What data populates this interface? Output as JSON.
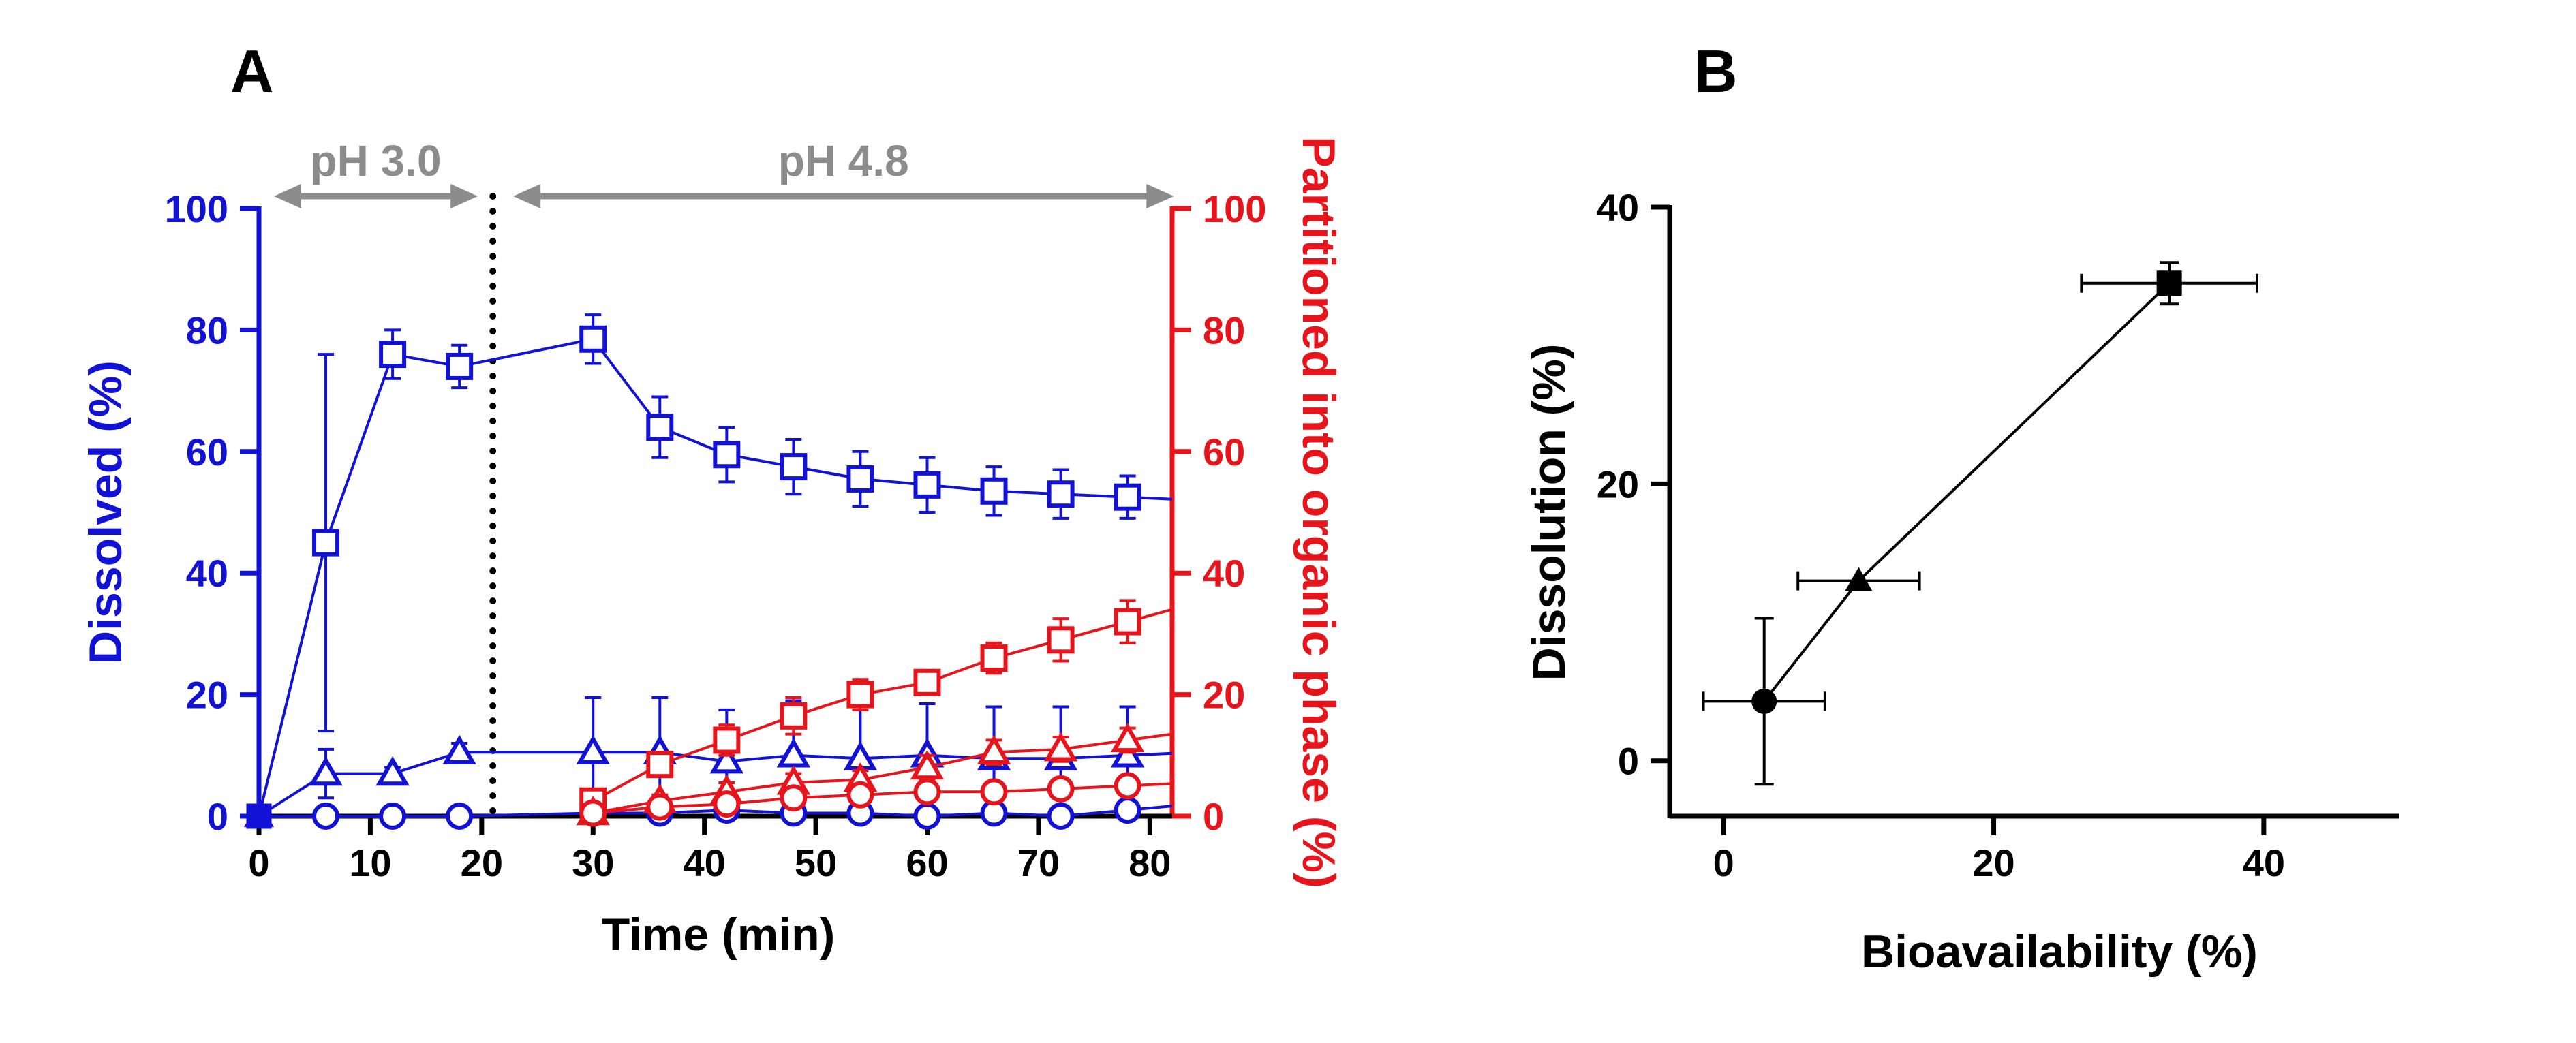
{
  "panels": {
    "a_label": "A",
    "b_label": "B"
  },
  "colors": {
    "blue": "#1212d6",
    "red": "#e8141b",
    "gray": "#8c8c8c",
    "black": "#000000"
  },
  "chart_data": [
    {
      "panel": "A",
      "type": "line",
      "xlabel": "Time (min)",
      "ylabel": "Dissolved (%)",
      "y2label": "Partitioned into organic phase (%)",
      "xlim": [
        0,
        82
      ],
      "ylim": [
        0,
        100
      ],
      "y2lim": [
        0,
        100
      ],
      "xticks": [
        "0",
        "10",
        "20",
        "30",
        "40",
        "50",
        "60",
        "70",
        "80"
      ],
      "yticks": [
        "0",
        "20",
        "40",
        "60",
        "80",
        "100"
      ],
      "y2ticks": [
        "0",
        "20",
        "40",
        "60",
        "80",
        "100"
      ],
      "phase_annotations": [
        {
          "label": "pH 3.0",
          "range": [
            0,
            21
          ]
        },
        {
          "label": "pH 4.8",
          "range": [
            21,
            80
          ]
        }
      ],
      "ph_switch_time": 21,
      "series": [
        {
          "axis": "left",
          "marker": "square",
          "color": "blue",
          "x": [
            0,
            6,
            12,
            18,
            30,
            36,
            42,
            48,
            54,
            60,
            66,
            72,
            78
          ],
          "y": [
            0,
            45,
            76,
            74,
            78.5,
            64,
            59.5,
            57.5,
            55.5,
            54.5,
            53.5,
            53,
            52.5
          ],
          "err": [
            0,
            31,
            4,
            3.5,
            4,
            5,
            4.5,
            4.5,
            4.5,
            4.5,
            4,
            4,
            3.5
          ]
        },
        {
          "axis": "left",
          "marker": "triangle",
          "color": "blue",
          "x": [
            0,
            6,
            12,
            18,
            30,
            36,
            42,
            48,
            54,
            60,
            66,
            72,
            78
          ],
          "y": [
            0,
            7,
            7,
            10.5,
            10.5,
            10.5,
            9,
            10,
            9.5,
            10,
            9.5,
            9.5,
            10
          ],
          "err": [
            0,
            4,
            1,
            1.5,
            9,
            9,
            8.5,
            9,
            8.5,
            8.5,
            8.5,
            8.5,
            8
          ]
        },
        {
          "axis": "left",
          "marker": "circle",
          "color": "blue",
          "x": [
            0,
            6,
            12,
            18,
            30,
            36,
            42,
            48,
            54,
            60,
            66,
            72,
            78
          ],
          "y": [
            0,
            0,
            0,
            0,
            0.5,
            0.5,
            1,
            0.5,
            0.5,
            0,
            0.5,
            0,
            1
          ],
          "err": [
            0,
            0,
            0,
            0,
            0.5,
            0.5,
            0.5,
            0.5,
            0.5,
            0.5,
            0.5,
            0.5,
            0.5
          ]
        },
        {
          "axis": "right",
          "marker": "square",
          "color": "red",
          "x": [
            30,
            36,
            42,
            48,
            54,
            60,
            66,
            72,
            78
          ],
          "y": [
            2.5,
            8.5,
            12.5,
            16.5,
            20,
            22,
            26,
            29,
            32
          ],
          "err": [
            1,
            1.5,
            2.5,
            3,
            2.5,
            2,
            2.5,
            3.5,
            3.5
          ]
        },
        {
          "axis": "right",
          "marker": "triangle",
          "color": "red",
          "x": [
            30,
            36,
            42,
            48,
            54,
            60,
            66,
            72,
            78
          ],
          "y": [
            0.5,
            2.5,
            4,
            5.5,
            6,
            8,
            10.5,
            11,
            12.5
          ],
          "err": [
            0.5,
            1,
            1.5,
            1.5,
            1.5,
            2,
            2,
            2,
            2
          ]
        },
        {
          "axis": "right",
          "marker": "circle",
          "color": "red",
          "x": [
            30,
            36,
            42,
            48,
            54,
            60,
            66,
            72,
            78
          ],
          "y": [
            0.5,
            1.5,
            2,
            3,
            3.5,
            4,
            4,
            4.5,
            5
          ],
          "err": [
            0.5,
            0.5,
            0.5,
            0.5,
            0.5,
            0.5,
            0.5,
            0.5,
            0.5
          ]
        }
      ]
    },
    {
      "panel": "B",
      "type": "scatter",
      "xlabel": "Bioavailability (%)",
      "ylabel": "Dissolution (%)",
      "xlim": [
        -4,
        50
      ],
      "ylim": [
        -4,
        40
      ],
      "xticks": [
        "0",
        "20",
        "40"
      ],
      "yticks": [
        "0",
        "20",
        "40"
      ],
      "connected": true,
      "points": [
        {
          "marker": "circle",
          "x": 3,
          "y": 4.3,
          "xerr": 4.5,
          "yerr": 6
        },
        {
          "marker": "triangle",
          "x": 10,
          "y": 13,
          "xerr": 4.5,
          "yerr": 0
        },
        {
          "marker": "square",
          "x": 33,
          "y": 34.5,
          "xerr": 6.5,
          "yerr": 1.5
        }
      ]
    }
  ]
}
